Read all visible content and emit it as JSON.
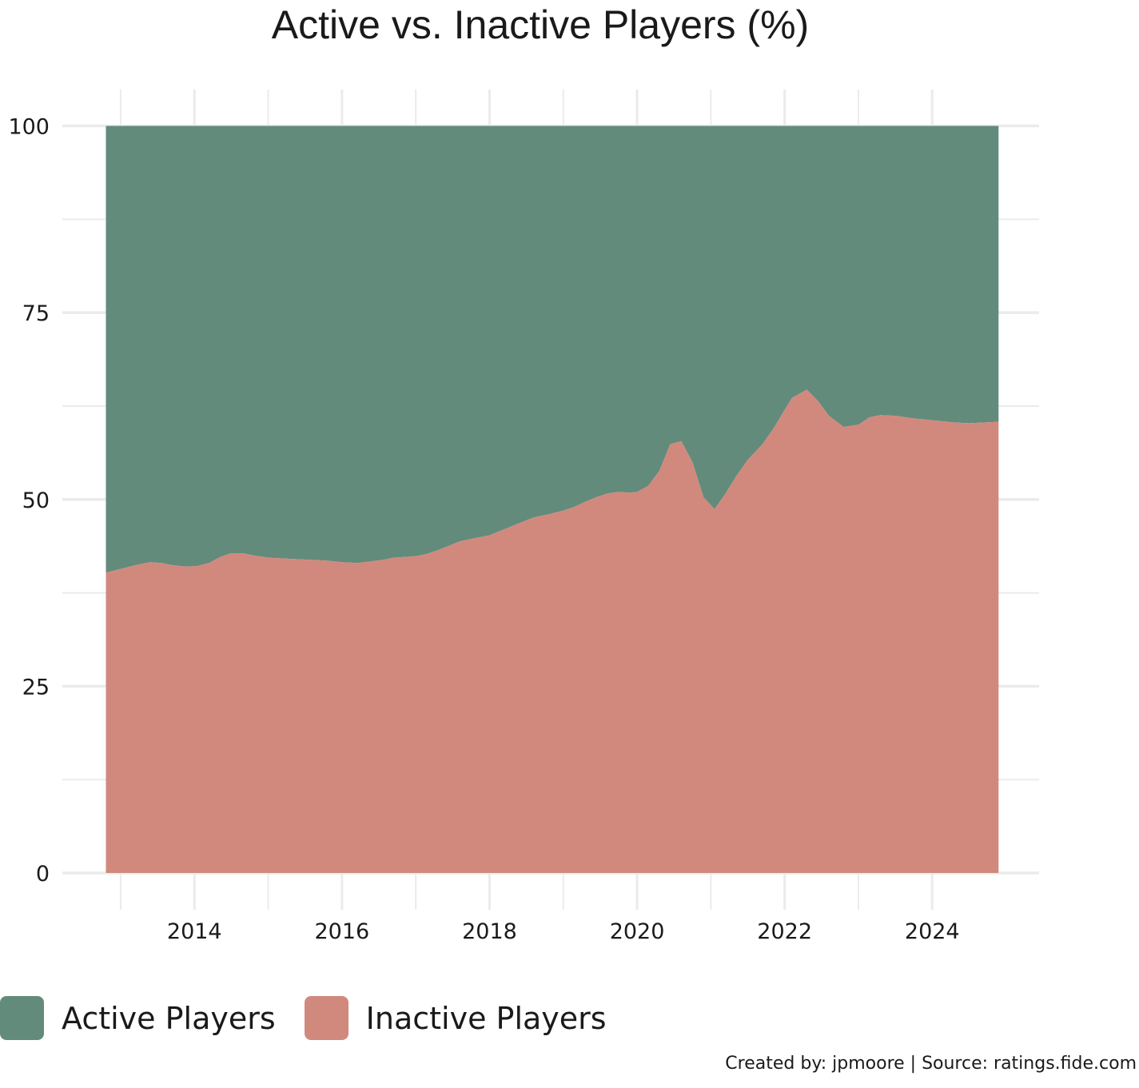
{
  "chart_data": {
    "type": "area",
    "title": "Active vs. Inactive Players (%)",
    "xlabel": "",
    "ylabel": "",
    "x_ticks": [
      "2014",
      "2016",
      "2018",
      "2020",
      "2022",
      "2024"
    ],
    "y_ticks": [
      "0",
      "25",
      "50",
      "75",
      "100"
    ],
    "xlim": [
      2012.8,
      2024.9
    ],
    "ylim": [
      0,
      100
    ],
    "stacked_percent": true,
    "grid": true,
    "legend_position": "bottom-left",
    "x": [
      2012.8,
      2013.0,
      2013.2,
      2013.4,
      2013.55,
      2013.7,
      2013.9,
      2014.05,
      2014.2,
      2014.35,
      2014.5,
      2014.65,
      2014.8,
      2015.0,
      2015.2,
      2015.4,
      2015.6,
      2015.8,
      2016.0,
      2016.2,
      2016.4,
      2016.55,
      2016.7,
      2016.85,
      2017.0,
      2017.15,
      2017.3,
      2017.45,
      2017.6,
      2017.8,
      2018.0,
      2018.15,
      2018.3,
      2018.45,
      2018.6,
      2018.8,
      2019.0,
      2019.15,
      2019.3,
      2019.45,
      2019.6,
      2019.75,
      2019.9,
      2020.0,
      2020.15,
      2020.3,
      2020.45,
      2020.6,
      2020.75,
      2020.9,
      2021.05,
      2021.2,
      2021.35,
      2021.5,
      2021.7,
      2021.85,
      2022.0,
      2022.1,
      2022.3,
      2022.45,
      2022.6,
      2022.8,
      2023.0,
      2023.15,
      2023.3,
      2023.5,
      2023.7,
      2023.9,
      2024.1,
      2024.3,
      2024.5,
      2024.7,
      2024.9
    ],
    "series": [
      {
        "name": "Inactive Players",
        "color": "#d1897d",
        "values": [
          40.2,
          40.7,
          41.2,
          41.6,
          41.5,
          41.2,
          41.0,
          41.1,
          41.5,
          42.3,
          42.8,
          42.8,
          42.5,
          42.2,
          42.1,
          42.0,
          41.9,
          41.8,
          41.6,
          41.5,
          41.7,
          41.9,
          42.2,
          42.3,
          42.4,
          42.7,
          43.2,
          43.8,
          44.4,
          44.8,
          45.2,
          45.8,
          46.4,
          47.0,
          47.6,
          48.0,
          48.5,
          49.0,
          49.7,
          50.3,
          50.8,
          51.0,
          50.9,
          51.0,
          51.8,
          53.8,
          57.4,
          57.8,
          55.0,
          50.3,
          48.7,
          50.8,
          53.2,
          55.3,
          57.4,
          59.5,
          62.0,
          63.6,
          64.7,
          63.2,
          61.2,
          59.7,
          60.0,
          61.0,
          61.3,
          61.2,
          60.9,
          60.7,
          60.5,
          60.3,
          60.2,
          60.3,
          60.4
        ]
      },
      {
        "name": "Active Players",
        "color": "#638b7c",
        "values": [
          59.8,
          59.3,
          58.8,
          58.4,
          58.5,
          58.8,
          59.0,
          58.9,
          58.5,
          57.7,
          57.2,
          57.2,
          57.5,
          57.8,
          57.9,
          58.0,
          58.1,
          58.2,
          58.4,
          58.5,
          58.3,
          58.1,
          57.8,
          57.7,
          57.6,
          57.3,
          56.8,
          56.2,
          55.6,
          55.2,
          54.8,
          54.2,
          53.6,
          53.0,
          52.4,
          52.0,
          51.5,
          51.0,
          50.3,
          49.7,
          49.2,
          49.0,
          49.1,
          49.0,
          48.2,
          46.2,
          42.6,
          42.2,
          45.0,
          49.7,
          51.3,
          49.2,
          46.8,
          44.7,
          42.6,
          40.5,
          38.0,
          36.4,
          35.3,
          36.8,
          38.8,
          40.3,
          40.0,
          39.0,
          38.7,
          38.8,
          39.1,
          39.3,
          39.5,
          39.7,
          39.8,
          39.7,
          39.6
        ]
      }
    ],
    "legend": [
      "Active Players",
      "Inactive Players"
    ],
    "caption": "Created by: jpmoore | Source: ratings.fide.com"
  }
}
